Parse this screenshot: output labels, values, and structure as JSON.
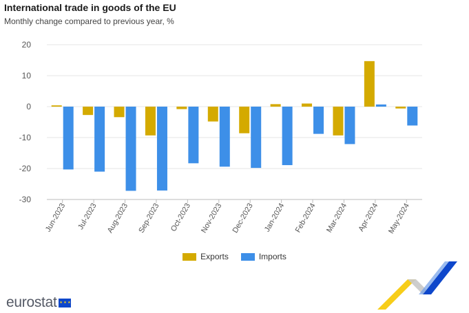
{
  "title": "International trade in goods of the EU",
  "subtitle": "Monthly change compared to previous year, %",
  "colors": {
    "exports": "#d4aa00",
    "imports": "#3d8fe8",
    "grid": "#e6e6e6",
    "axis": "#333333"
  },
  "chart_data": {
    "type": "bar",
    "title": "International trade in goods of the EU",
    "subtitle": "Monthly change compared to previous year, %",
    "categories": [
      "Jun-2023",
      "Jul-2023",
      "Aug-2023",
      "Sep-2023",
      "Oct-2023",
      "Nov-2023",
      "Dec-2023",
      "Jan-2024",
      "Feb-2024",
      "Mar-2024",
      "Apr-2024",
      "May-2024"
    ],
    "series": [
      {
        "name": "Exports",
        "values": [
          0.4,
          -2.7,
          -3.4,
          -9.3,
          -0.8,
          -4.8,
          -8.6,
          0.8,
          1.0,
          -9.3,
          14.7,
          -0.6
        ]
      },
      {
        "name": "Imports",
        "values": [
          -20.3,
          -21.0,
          -27.2,
          -27.1,
          -18.3,
          -19.4,
          -19.8,
          -18.9,
          -8.8,
          -12.1,
          0.7,
          -6.1
        ]
      }
    ],
    "yticks": [
      20,
      10,
      0,
      -10,
      -20,
      -30
    ],
    "ylim": [
      -30,
      20
    ],
    "grid": true,
    "legend": "bottom-center"
  },
  "legend": {
    "exports_label": "Exports",
    "imports_label": "Imports"
  },
  "logo": {
    "text": "eurostat"
  }
}
